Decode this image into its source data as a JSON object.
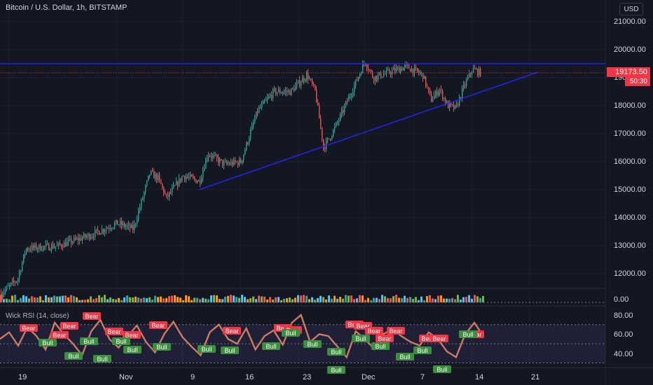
{
  "header": {
    "symbol_title": "Bitcoin / U.S. Dollar, 1h, BITSTAMP",
    "currency_button": "USD"
  },
  "price_axis": {
    "labels": [
      "21000.00",
      "20000.00",
      "19000.00",
      "18000.00",
      "17000.00",
      "16000.00",
      "15000.00",
      "14000.00",
      "13000.00",
      "12000.00"
    ],
    "last_price": "19173.50",
    "countdown": "50:30"
  },
  "volume_axis": {
    "labels": [
      "0.00"
    ]
  },
  "rsi_panel": {
    "title": "Wick RSI (14, close)",
    "axis_labels": [
      "80.00",
      "60.00",
      "40.00"
    ]
  },
  "time_axis": {
    "labels": [
      "19",
      "Nov",
      "9",
      "16",
      "23",
      "Dec",
      "7",
      "14",
      "21"
    ]
  },
  "labels": {
    "bear": "Bear",
    "bull": "Bull"
  },
  "colors": {
    "up": "#26a69a",
    "down": "#ef5350",
    "trendline": "#2424e8",
    "bear": "#f23645",
    "bull": "#3c8f3c",
    "rsi_line": "#f7931a",
    "rsi_fill": "#7e57c2"
  },
  "chart_data": {
    "type": "candlestick",
    "symbol": "Bitcoin / U.S. Dollar",
    "timeframe": "1h",
    "exchange": "BITSTAMP",
    "ylim": [
      11400,
      21500
    ],
    "last_price": 19173.5,
    "close_path": [
      [
        "2020-10-18",
        11300
      ],
      [
        "2020-10-20",
        11800
      ],
      [
        "2020-10-21",
        12900
      ],
      [
        "2020-10-25",
        13000
      ],
      [
        "2020-10-29",
        13400
      ],
      [
        "2020-11-01",
        13800
      ],
      [
        "2020-11-03",
        13600
      ],
      [
        "2020-11-05",
        15600
      ],
      [
        "2020-11-06",
        15400
      ],
      [
        "2020-11-07",
        14700
      ],
      [
        "2020-11-09",
        15500
      ],
      [
        "2020-11-11",
        15300
      ],
      [
        "2020-11-12",
        16300
      ],
      [
        "2020-11-14",
        15900
      ],
      [
        "2020-11-16",
        16000
      ],
      [
        "2020-11-18",
        17800
      ],
      [
        "2020-11-20",
        18500
      ],
      [
        "2020-11-22",
        18500
      ],
      [
        "2020-11-24",
        19100
      ],
      [
        "2020-11-25",
        18500
      ],
      [
        "2020-11-26",
        16500
      ],
      [
        "2020-11-27",
        17000
      ],
      [
        "2020-11-28",
        17600
      ],
      [
        "2020-11-30",
        18900
      ],
      [
        "2020-12-01",
        19600
      ],
      [
        "2020-12-02",
        19000
      ],
      [
        "2020-12-04",
        19200
      ],
      [
        "2020-12-06",
        19400
      ],
      [
        "2020-12-08",
        19100
      ],
      [
        "2020-12-09",
        18200
      ],
      [
        "2020-12-10",
        18600
      ],
      [
        "2020-12-11",
        18000
      ],
      [
        "2020-12-12",
        17900
      ],
      [
        "2020-12-13",
        18700
      ],
      [
        "2020-12-14",
        19300
      ],
      [
        "2020-12-15",
        19173.5
      ]
    ],
    "trendlines": [
      {
        "kind": "horizontal",
        "price": 19500
      },
      {
        "kind": "rising",
        "points": [
          [
            "2020-11-11",
            15000
          ],
          [
            "2020-12-22",
            19200
          ]
        ]
      }
    ],
    "rsi": {
      "name": "Wick RSI",
      "length": 14,
      "source": "close",
      "ylim": [
        30,
        90
      ],
      "bands": [
        70,
        50,
        30
      ],
      "values": [
        55,
        62,
        48,
        67,
        58,
        44,
        72,
        60,
        50,
        38,
        63,
        75,
        55,
        46,
        58,
        69,
        52,
        41,
        60,
        73,
        57,
        47,
        38,
        62,
        70,
        55,
        50,
        66,
        44,
        58,
        64,
        49,
        72,
        80,
        52,
        60,
        58,
        47,
        36,
        63,
        55,
        45,
        60,
        65,
        58,
        52,
        48,
        62,
        55,
        42,
        36,
        60,
        72,
        58
      ]
    }
  }
}
